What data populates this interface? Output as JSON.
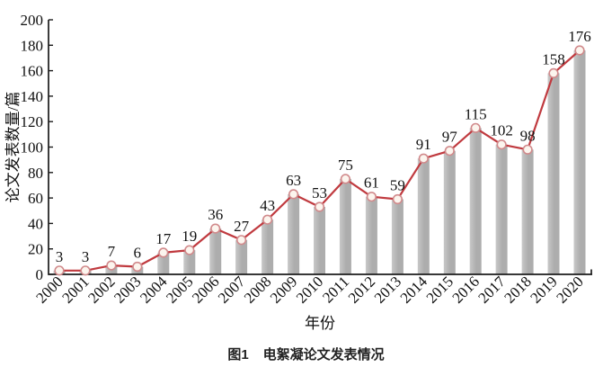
{
  "figure": {
    "caption": {
      "prefix": "图1",
      "text": "电絮凝论文发表情况"
    }
  },
  "chart_data": {
    "type": "bar",
    "overlay": "line-with-open-circle-markers",
    "title": "图1 电絮凝论文发表情况",
    "categories": [
      "2000",
      "2001",
      "2002",
      "2003",
      "2004",
      "2005",
      "2006",
      "2007",
      "2008",
      "2009",
      "2010",
      "2011",
      "2012",
      "2013",
      "2014",
      "2015",
      "2016",
      "2017",
      "2018",
      "2019",
      "2020"
    ],
    "values": [
      3,
      3,
      7,
      6,
      17,
      19,
      36,
      27,
      43,
      63,
      53,
      75,
      61,
      59,
      91,
      97,
      115,
      102,
      98,
      158,
      176
    ],
    "xlabel": "年份",
    "ylabel": "论文发表数量/篇",
    "ylim": [
      0,
      200
    ],
    "yticks": [
      0,
      20,
      40,
      60,
      80,
      100,
      120,
      140,
      160,
      180,
      200
    ],
    "grid": false,
    "legend": null,
    "data_labels": true,
    "tick_direction": "in",
    "xtick_rotation_deg": 45,
    "colors": {
      "bar_light": "#c8c8c8",
      "bar": "#adadad",
      "line": "#c03a3f",
      "marker_fill": "#fcf5ee",
      "marker_stroke": "#d18a8c",
      "axis": "#1c1c1c",
      "text": "#111111"
    }
  }
}
